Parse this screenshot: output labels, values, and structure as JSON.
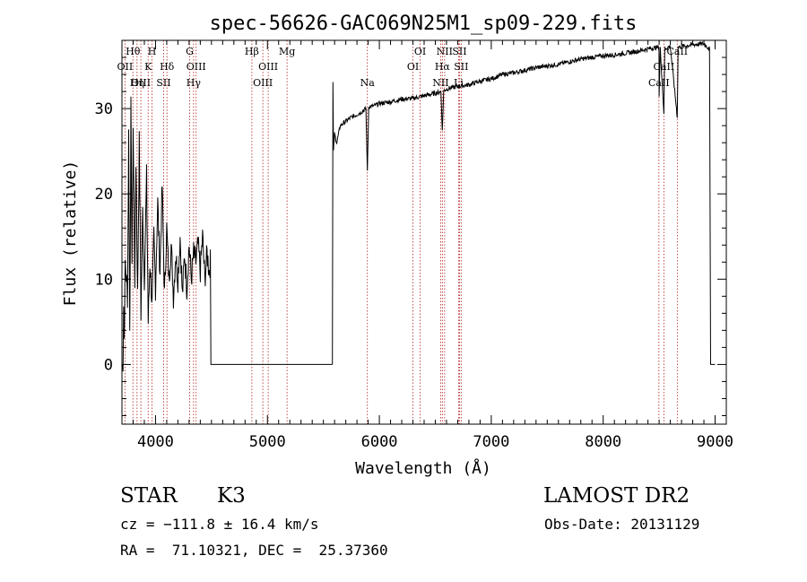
{
  "chart_data": {
    "type": "line",
    "title": "spec-56626-GAC069N25M1_sp09-229.fits",
    "xlabel": "Wavelength (Å)",
    "ylabel": "Flux (relative)",
    "xlim": [
      3700,
      9100
    ],
    "ylim": [
      -7,
      38
    ],
    "xticks": [
      4000,
      5000,
      6000,
      7000,
      8000,
      9000
    ],
    "yticks": [
      0,
      10,
      20,
      30
    ],
    "grid": false,
    "line_color": "#000000",
    "marker_color": "#b22222",
    "spectrum_anchors": [
      [
        3700,
        0
      ],
      [
        3710,
        0
      ],
      [
        3715,
        7
      ],
      [
        3720,
        3
      ],
      [
        3730,
        12
      ],
      [
        3750,
        8
      ],
      [
        3760,
        27
      ],
      [
        3770,
        4
      ],
      [
        3780,
        30
      ],
      [
        3790,
        12
      ],
      [
        3800,
        28
      ],
      [
        3815,
        10
      ],
      [
        3825,
        24
      ],
      [
        3840,
        8
      ],
      [
        3855,
        26
      ],
      [
        3870,
        6
      ],
      [
        3885,
        18
      ],
      [
        3900,
        10
      ],
      [
        3920,
        22
      ],
      [
        3935,
        5
      ],
      [
        3950,
        12
      ],
      [
        3970,
        7
      ],
      [
        3985,
        15
      ],
      [
        4000,
        9
      ],
      [
        4020,
        19
      ],
      [
        4040,
        11
      ],
      [
        4060,
        21
      ],
      [
        4080,
        8
      ],
      [
        4100,
        16
      ],
      [
        4120,
        10
      ],
      [
        4140,
        14
      ],
      [
        4160,
        8
      ],
      [
        4180,
        13
      ],
      [
        4200,
        10
      ],
      [
        4220,
        15
      ],
      [
        4240,
        8
      ],
      [
        4260,
        13
      ],
      [
        4280,
        9
      ],
      [
        4300,
        14
      ],
      [
        4320,
        10
      ],
      [
        4340,
        13
      ],
      [
        4360,
        12
      ],
      [
        4380,
        14
      ],
      [
        4400,
        11
      ],
      [
        4420,
        15
      ],
      [
        4440,
        10
      ],
      [
        4460,
        13
      ],
      [
        4480,
        11
      ],
      [
        4490,
        12
      ],
      [
        4495,
        0
      ],
      [
        4510,
        0
      ],
      [
        5580,
        0
      ],
      [
        5585,
        33
      ],
      [
        5590,
        25
      ],
      [
        5600,
        27
      ],
      [
        5620,
        26
      ],
      [
        5650,
        28
      ],
      [
        5700,
        28.5
      ],
      [
        5750,
        29
      ],
      [
        5800,
        29.3
      ],
      [
        5850,
        29.7
      ],
      [
        5880,
        30
      ],
      [
        5893,
        22.5
      ],
      [
        5905,
        30.2
      ],
      [
        5950,
        30.3
      ],
      [
        6000,
        30.6
      ],
      [
        6100,
        30.8
      ],
      [
        6200,
        31.1
      ],
      [
        6300,
        31.2
      ],
      [
        6400,
        31.5
      ],
      [
        6500,
        31.8
      ],
      [
        6550,
        32.0
      ],
      [
        6563,
        27.3
      ],
      [
        6575,
        32.1
      ],
      [
        6600,
        32.3
      ],
      [
        6700,
        32.6
      ],
      [
        6800,
        32.8
      ],
      [
        6900,
        33.2
      ],
      [
        7000,
        33.5
      ],
      [
        7100,
        34.0
      ],
      [
        7200,
        34.2
      ],
      [
        7300,
        34.5
      ],
      [
        7400,
        34.8
      ],
      [
        7500,
        35.0
      ],
      [
        7600,
        35.2
      ],
      [
        7700,
        35.5
      ],
      [
        7800,
        35.8
      ],
      [
        7900,
        36.0
      ],
      [
        8000,
        36.2
      ],
      [
        8100,
        36.3
      ],
      [
        8200,
        36.5
      ],
      [
        8300,
        36.7
      ],
      [
        8400,
        37.0
      ],
      [
        8498,
        37.2
      ],
      [
        8500,
        31.5
      ],
      [
        8510,
        37.0
      ],
      [
        8542,
        29.5
      ],
      [
        8550,
        37.0
      ],
      [
        8600,
        37.3
      ],
      [
        8662,
        29.0
      ],
      [
        8670,
        37.2
      ],
      [
        8800,
        37.5
      ],
      [
        8900,
        37.6
      ],
      [
        8950,
        37.0
      ],
      [
        8960,
        0
      ],
      [
        9000,
        0
      ]
    ],
    "lines": [
      {
        "label": "Hθ",
        "x": 3798,
        "row": 0
      },
      {
        "label": "OII",
        "x": 3727,
        "row": 1
      },
      {
        "label": "OIII",
        "x": 3869,
        "row": 2
      },
      {
        "label": "Hη",
        "x": 3835,
        "row": 2
      },
      {
        "label": "H",
        "x": 3969,
        "row": 0
      },
      {
        "label": "K",
        "x": 3934,
        "row": 1
      },
      {
        "label": "Hδ",
        "x": 4102,
        "row": 1
      },
      {
        "label": "SII",
        "x": 4072,
        "row": 2
      },
      {
        "label": "G",
        "x": 4305,
        "row": 0
      },
      {
        "label": "OIII",
        "x": 4363,
        "row": 1
      },
      {
        "label": "Hγ",
        "x": 4340,
        "row": 2
      },
      {
        "label": "Hβ",
        "x": 4861,
        "row": 0
      },
      {
        "label": "Mg",
        "x": 5175,
        "row": 0
      },
      {
        "label": "OIII",
        "x": 5007,
        "row": 1
      },
      {
        "label": "OIII",
        "x": 4959,
        "row": 2
      },
      {
        "label": "Na",
        "x": 5893,
        "row": 2
      },
      {
        "label": "OI",
        "x": 6364,
        "row": 0
      },
      {
        "label": "OI",
        "x": 6300,
        "row": 1
      },
      {
        "label": "NII",
        "x": 6583,
        "row": 0
      },
      {
        "label": "SII",
        "x": 6716,
        "row": 0
      },
      {
        "label": "Hα",
        "x": 6563,
        "row": 1
      },
      {
        "label": "SII",
        "x": 6731,
        "row": 1
      },
      {
        "label": "NII",
        "x": 6548,
        "row": 2
      },
      {
        "label": "Li",
        "x": 6708,
        "row": 2
      },
      {
        "label": "CaII",
        "x": 8662,
        "row": 0
      },
      {
        "label": "CaII",
        "x": 8542,
        "row": 1
      },
      {
        "label": "CaII",
        "x": 8498,
        "row": 2
      }
    ]
  },
  "info": {
    "class": "STAR",
    "subclass": "K3",
    "survey": "LAMOST DR2",
    "cz": "cz = −111.8 ± 16.4 km/s",
    "obs_date": "Obs-Date: 20131129",
    "radec": "RA =  71.10321, DEC =  25.37360"
  }
}
